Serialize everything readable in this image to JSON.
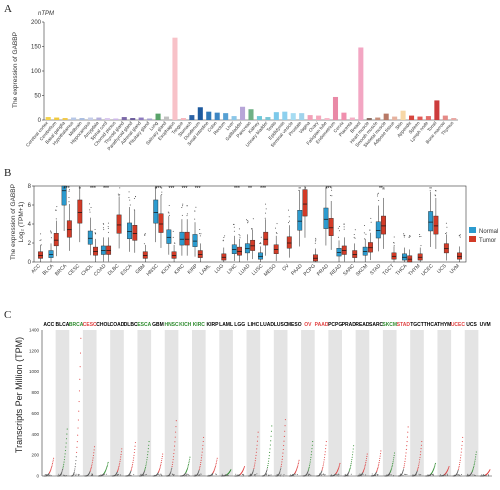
{
  "panel_labels": [
    "A",
    "B",
    "C"
  ],
  "chart_data": [
    {
      "panel": "A",
      "type": "bar",
      "ylabel": "The expression of GABBP",
      "unit_label": "nTPM",
      "ylim": [
        0,
        200
      ],
      "yticks": [
        0,
        50,
        100,
        150,
        200
      ],
      "categories": [
        "Cerebral cortex",
        "Cerebellum",
        "Basal ganglia",
        "Hypothalamus",
        "Midbrain",
        "Hippocampus",
        "Amygdala",
        "Spinal cord",
        "Choroid plexus",
        "Thyroid gland",
        "Parathyroid gland",
        "Adrenal gland",
        "Pituitary gland",
        "Lung",
        "Salivary gland",
        "Esophagus",
        "Tongue",
        "Stomach",
        "Duodenum",
        "Small intestine",
        "Colon",
        "Rectum",
        "Liver",
        "Gallbladder",
        "Pancreas",
        "Kidney",
        "Urinary bladder",
        "Testis",
        "Epididymis",
        "Seminal vesicle",
        "Prostate",
        "Vagina",
        "Ovary",
        "Fallopian tube",
        "Endometrium",
        "Cervix",
        "Placenta",
        "Breast",
        "Heart muscle",
        "Smooth muscle",
        "Skeletal muscle",
        "Adipose tissue",
        "Skin",
        "Appendix",
        "Spleen",
        "Lymph node",
        "Tonsil",
        "Bone marrow",
        "Thymus"
      ],
      "values": [
        6,
        5,
        4,
        5,
        4,
        5,
        5,
        4,
        3,
        6,
        4,
        5,
        3,
        13,
        7,
        168,
        4,
        10,
        26,
        17,
        15,
        14,
        8,
        27,
        22,
        8,
        6,
        16,
        17,
        14,
        14,
        10,
        9,
        4,
        47,
        15,
        5,
        148,
        4,
        5,
        13,
        7,
        19,
        9,
        7,
        8,
        40,
        9,
        4
      ],
      "colors": [
        "#f2d24b",
        "#efc93f",
        "#f0c84a",
        "#b7c7e6",
        "#a9bde0",
        "#c5cde8",
        "#b4b0dc",
        "#d9c8ee",
        "#cdb7e9",
        "#7d6aa8",
        "#6c5d9c",
        "#8f7cc0",
        "#a5a0cf",
        "#59a36a",
        "#c1c1c1",
        "#f8c2c8",
        "#f6b5bd",
        "#2b62a6",
        "#1d5a9e",
        "#2f78b7",
        "#3d86c3",
        "#56a0d3",
        "#8cc7e8",
        "#b7a5d8",
        "#6fb085",
        "#6fc8d8",
        "#79c5d4",
        "#7cc9ea",
        "#8dd0ee",
        "#a6dcf2",
        "#9fd3ec",
        "#f2a0b7",
        "#f5a8bd",
        "#f7b7c8",
        "#e989a6",
        "#f08fae",
        "#f3b0c6",
        "#f3a6c3",
        "#8a6f66",
        "#c58f7c",
        "#b87966",
        "#e6b3a0",
        "#f7d7a6",
        "#d6463e",
        "#e05a56",
        "#e26e6a",
        "#cc3c3c",
        "#e48a86",
        "#e8a7a3"
      ]
    },
    {
      "panel": "B",
      "type": "box",
      "ylabel": "The expression of GABBP",
      "ylabel2": "Log₂ (TPM+1)",
      "ylim": [
        0,
        8
      ],
      "yticks": [
        0,
        2,
        4,
        6,
        8
      ],
      "legend": [
        "Normal",
        "Tumor"
      ],
      "legend_colors": [
        "#2c9bcf",
        "#d23b27"
      ],
      "categories": [
        "ACC",
        "BLCA",
        "BRCA",
        "CESC",
        "CHOL",
        "COAD",
        "DLBC",
        "ESCA",
        "GBM",
        "HNSC",
        "KICH",
        "KIRC",
        "KIRP",
        "LAML",
        "LGG",
        "LIHC",
        "LUAD",
        "LUSC",
        "MESO",
        "OV",
        "PAAD",
        "PCPG",
        "PRAD",
        "READ",
        "SARC",
        "SKCM",
        "STAD",
        "TGCT",
        "THCA",
        "THYM",
        "UCEC",
        "UCS",
        "UVM"
      ],
      "normal_medians": [
        null,
        0.8,
        7.5,
        null,
        2.5,
        1.2,
        null,
        3.2,
        null,
        5.2,
        2.6,
        2.4,
        2.2,
        null,
        null,
        1.3,
        1.4,
        0.6,
        null,
        null,
        4.3,
        null,
        4.5,
        1.0,
        null,
        1.1,
        3.3,
        null,
        0.5,
        null,
        4.2,
        null,
        null
      ],
      "tumor_medians": [
        0.7,
        2.3,
        3.4,
        5.2,
        1.1,
        1.2,
        3.9,
        3.0,
        0.7,
        4.0,
        0.7,
        2.4,
        0.8,
        null,
        0.5,
        1.1,
        1.7,
        2.4,
        1.3,
        2.0,
        6.1,
        0.4,
        3.6,
        1.2,
        0.8,
        1.5,
        3.8,
        0.6,
        0.3,
        0.5,
        3.8,
        1.4,
        0.6
      ],
      "significance": [
        "",
        "",
        "***",
        "",
        "***",
        "***",
        "",
        "",
        "",
        "***",
        "***",
        "***",
        "***",
        "",
        "",
        "***",
        "**",
        "***",
        "",
        "",
        "",
        "",
        "***",
        "",
        "",
        "",
        "**",
        "",
        "",
        "",
        "",
        "",
        ""
      ]
    },
    {
      "panel": "C",
      "type": "scatter",
      "ylabel": "Transcripts Per Million (TPM)",
      "ylim": [
        0,
        1400
      ],
      "yticks": [
        0,
        200,
        400,
        600,
        800,
        1000,
        1200,
        1400
      ],
      "categories": [
        "ACC",
        "BLCA",
        "BRCA",
        "CESC",
        "CHOL",
        "COAD",
        "DLBC",
        "ESCA",
        "GBM",
        "HNSC",
        "KICH",
        "KIRC",
        "KIRP",
        "LAML",
        "LGG",
        "LIHC",
        "LUAD",
        "LUSC",
        "MESO",
        "OV",
        "PAAD",
        "PCPG",
        "PRAD",
        "READ",
        "SARC",
        "SKCM",
        "STAD",
        "TGCT",
        "THCA",
        "THYM",
        "UCEC",
        "UCS",
        "UVM"
      ],
      "label_colors": [
        "#000000",
        "#000000",
        "#2e8b2e",
        "#e04040",
        "#000000",
        "#000000",
        "#000000",
        "#2e8b2e",
        "#000000",
        "#2e8b2e",
        "#2e8b2e",
        "#2e8b2e",
        "#000000",
        "#000000",
        "#000000",
        "#000000",
        "#000000",
        "#000000",
        "#000000",
        "#e04040",
        "#e04040",
        "#000000",
        "#000000",
        "#000000",
        "#000000",
        "#2e8b2e",
        "#e04040",
        "#000000",
        "#000000",
        "#000000",
        "#e04040",
        "#000000",
        "#000000"
      ],
      "max_tpm": [
        170,
        450,
        1320,
        280,
        130,
        260,
        320,
        330,
        210,
        530,
        180,
        370,
        170,
        60,
        90,
        420,
        480,
        540,
        150,
        330,
        330,
        120,
        290,
        210,
        240,
        220,
        470,
        330,
        120,
        90,
        370,
        230,
        60
      ]
    }
  ]
}
